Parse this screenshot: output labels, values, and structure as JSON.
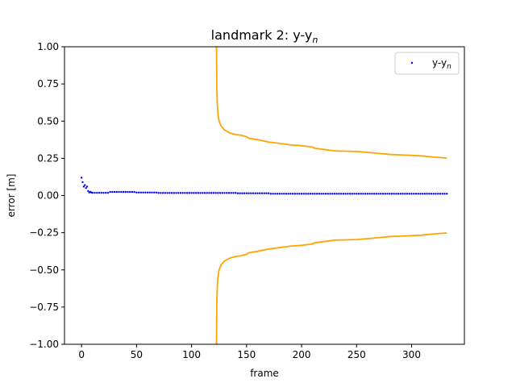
{
  "chart_data": {
    "type": "scatter",
    "title_main": "landmark 2: y-y",
    "title_sub": "n",
    "xlabel": "frame",
    "ylabel": "error [m]",
    "xlim": [
      -15.5,
      348
    ],
    "ylim": [
      -1.0,
      1.0
    ],
    "xticks": [
      0,
      50,
      100,
      150,
      200,
      250,
      300
    ],
    "xtick_labels": [
      "0",
      "50",
      "100",
      "150",
      "200",
      "250",
      "300"
    ],
    "yticks": [
      -1.0,
      -0.75,
      -0.5,
      -0.25,
      0.0,
      0.25,
      0.5,
      0.75,
      1.0
    ],
    "ytick_labels": [
      "−1.00",
      "−0.75",
      "−0.50",
      "−0.25",
      "0.00",
      "0.25",
      "0.50",
      "0.75",
      "1.00"
    ],
    "grid": false,
    "legend": {
      "placement": "top-right",
      "entries": [
        {
          "label_main": "y-y",
          "label_sub": "n",
          "marker_color": "#0000ff"
        }
      ]
    },
    "error_points": {
      "color": "#0000ff",
      "x_start": 0,
      "x_end": 332,
      "x_step": 2,
      "initial": [
        {
          "x": 0,
          "y": 0.12
        },
        {
          "x": 1,
          "y": 0.09
        },
        {
          "x": 2,
          "y": 0.06
        },
        {
          "x": 3,
          "y": 0.07
        },
        {
          "x": 4,
          "y": 0.05
        },
        {
          "x": 5,
          "y": 0.06
        },
        {
          "x": 6,
          "y": 0.03
        },
        {
          "x": 7,
          "y": 0.02
        },
        {
          "x": 8,
          "y": 0.025
        },
        {
          "x": 9,
          "y": 0.02
        }
      ],
      "levels": [
        {
          "from": 10,
          "to": 24,
          "y": 0.018
        },
        {
          "from": 25,
          "to": 48,
          "y": 0.024
        },
        {
          "from": 49,
          "to": 68,
          "y": 0.02
        },
        {
          "from": 69,
          "to": 140,
          "y": 0.017
        },
        {
          "from": 141,
          "to": 170,
          "y": 0.015
        },
        {
          "from": 171,
          "to": 332,
          "y": 0.012
        }
      ]
    },
    "bound_color": "#ffa500",
    "upper_bound": [
      {
        "x": 122.6,
        "y": 1.05
      },
      {
        "x": 122.8,
        "y": 0.85
      },
      {
        "x": 123,
        "y": 0.7
      },
      {
        "x": 123.5,
        "y": 0.6
      },
      {
        "x": 124,
        "y": 0.55
      },
      {
        "x": 125,
        "y": 0.5
      },
      {
        "x": 127,
        "y": 0.465
      },
      {
        "x": 130,
        "y": 0.44
      },
      {
        "x": 135,
        "y": 0.42
      },
      {
        "x": 140,
        "y": 0.41
      },
      {
        "x": 145,
        "y": 0.405
      },
      {
        "x": 150,
        "y": 0.395
      },
      {
        "x": 152,
        "y": 0.385
      },
      {
        "x": 160,
        "y": 0.375
      },
      {
        "x": 170,
        "y": 0.36
      },
      {
        "x": 180,
        "y": 0.35
      },
      {
        "x": 190,
        "y": 0.34
      },
      {
        "x": 200,
        "y": 0.335
      },
      {
        "x": 210,
        "y": 0.325
      },
      {
        "x": 212,
        "y": 0.318
      },
      {
        "x": 220,
        "y": 0.31
      },
      {
        "x": 230,
        "y": 0.3
      },
      {
        "x": 240,
        "y": 0.298
      },
      {
        "x": 250,
        "y": 0.296
      },
      {
        "x": 260,
        "y": 0.29
      },
      {
        "x": 270,
        "y": 0.283
      },
      {
        "x": 280,
        "y": 0.276
      },
      {
        "x": 290,
        "y": 0.273
      },
      {
        "x": 300,
        "y": 0.27
      },
      {
        "x": 310,
        "y": 0.266
      },
      {
        "x": 320,
        "y": 0.258
      },
      {
        "x": 332,
        "y": 0.252
      }
    ],
    "lower_bound": [
      {
        "x": 122.6,
        "y": -1.05
      },
      {
        "x": 122.8,
        "y": -0.85
      },
      {
        "x": 123,
        "y": -0.7
      },
      {
        "x": 123.5,
        "y": -0.6
      },
      {
        "x": 124,
        "y": -0.55
      },
      {
        "x": 125,
        "y": -0.5
      },
      {
        "x": 127,
        "y": -0.465
      },
      {
        "x": 130,
        "y": -0.44
      },
      {
        "x": 135,
        "y": -0.42
      },
      {
        "x": 140,
        "y": -0.41
      },
      {
        "x": 145,
        "y": -0.405
      },
      {
        "x": 150,
        "y": -0.395
      },
      {
        "x": 152,
        "y": -0.385
      },
      {
        "x": 160,
        "y": -0.375
      },
      {
        "x": 170,
        "y": -0.36
      },
      {
        "x": 180,
        "y": -0.35
      },
      {
        "x": 190,
        "y": -0.34
      },
      {
        "x": 200,
        "y": -0.335
      },
      {
        "x": 210,
        "y": -0.325
      },
      {
        "x": 212,
        "y": -0.318
      },
      {
        "x": 220,
        "y": -0.31
      },
      {
        "x": 230,
        "y": -0.3
      },
      {
        "x": 240,
        "y": -0.298
      },
      {
        "x": 250,
        "y": -0.296
      },
      {
        "x": 260,
        "y": -0.29
      },
      {
        "x": 270,
        "y": -0.283
      },
      {
        "x": 280,
        "y": -0.276
      },
      {
        "x": 290,
        "y": -0.273
      },
      {
        "x": 300,
        "y": -0.27
      },
      {
        "x": 310,
        "y": -0.266
      },
      {
        "x": 320,
        "y": -0.258
      },
      {
        "x": 332,
        "y": -0.252
      }
    ]
  }
}
